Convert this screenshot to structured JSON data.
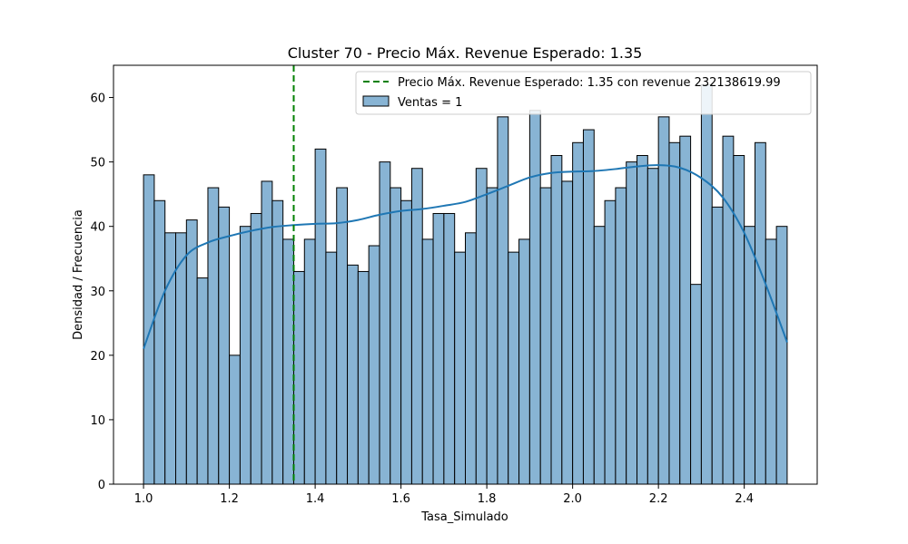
{
  "chart_data": {
    "type": "bar",
    "title": "Cluster 70 - Precio Máx. Revenue Esperado: 1.35",
    "xlabel": "Tasa_Simulado",
    "ylabel": "Densidad / Frecuencia",
    "xlim": [
      0.93,
      2.57
    ],
    "ylim": [
      0,
      65
    ],
    "xticks": [
      1.0,
      1.2,
      1.4,
      1.6,
      1.8,
      2.0,
      2.2,
      2.4
    ],
    "xtick_labels": [
      "1.0",
      "1.2",
      "1.4",
      "1.6",
      "1.8",
      "2.0",
      "2.2",
      "2.4"
    ],
    "yticks": [
      0,
      10,
      20,
      30,
      40,
      50,
      60
    ],
    "ytick_labels": [
      "0",
      "10",
      "20",
      "30",
      "40",
      "50",
      "60"
    ],
    "grid": false,
    "legend_position": "top-right",
    "bins": {
      "start": 1.0,
      "end": 2.5,
      "counts": [
        48,
        44,
        39,
        39,
        41,
        32,
        46,
        43,
        20,
        40,
        42,
        47,
        44,
        38,
        33,
        38,
        52,
        36,
        46,
        34,
        33,
        37,
        50,
        46,
        44,
        49,
        38,
        42,
        42,
        36,
        39,
        49,
        46,
        57,
        36,
        38,
        58,
        46,
        51,
        47,
        53,
        55,
        40,
        44,
        46,
        50,
        51,
        49,
        57,
        53,
        54,
        31,
        62,
        43,
        54,
        51,
        40,
        53,
        38,
        40
      ]
    },
    "kde": {
      "x": [
        1.0,
        1.05,
        1.1,
        1.15,
        1.2,
        1.25,
        1.3,
        1.35,
        1.4,
        1.45,
        1.5,
        1.55,
        1.6,
        1.65,
        1.7,
        1.75,
        1.8,
        1.85,
        1.9,
        1.95,
        2.0,
        2.05,
        2.1,
        2.15,
        2.2,
        2.25,
        2.3,
        2.35,
        2.4,
        2.45,
        2.5
      ],
      "y": [
        21,
        30,
        35.5,
        37.5,
        38.5,
        39.3,
        39.9,
        40.2,
        40.4,
        40.5,
        41,
        41.8,
        42.4,
        42.7,
        43.2,
        43.8,
        45,
        46.3,
        47.6,
        48.3,
        48.5,
        48.6,
        48.9,
        49.3,
        49.5,
        49.1,
        47.5,
        44.5,
        39,
        31,
        22
      ]
    },
    "vline": {
      "x": 1.35,
      "label": "Precio Máx. Revenue Esperado: 1.35 con revenue 232138619.99",
      "color": "#008000"
    },
    "series": [
      {
        "name": "Ventas = 1",
        "color": "#1f77b4",
        "fill": "#88b4d4"
      }
    ]
  }
}
